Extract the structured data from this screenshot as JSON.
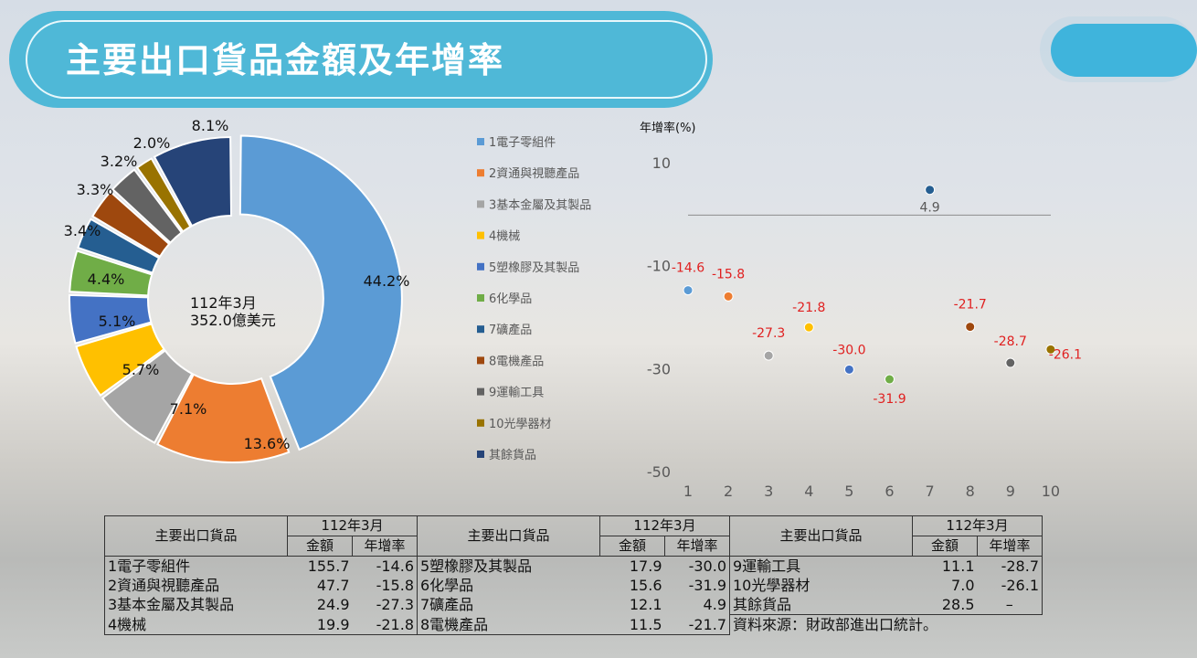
{
  "title": "主要出口貨品金額及年增率",
  "colors": {
    "title_bg": "#4fb8d7",
    "category_colors": [
      "#5b9bd5",
      "#ed7d31",
      "#a5a5a5",
      "#ffc000",
      "#4472c4",
      "#70ad47",
      "#255e91",
      "#9e480e",
      "#636363",
      "#997300",
      "#264478"
    ],
    "growth_label_negative": "#e02020",
    "growth_label_positive": "#595959"
  },
  "chart_data": [
    {
      "type": "pie",
      "variant": "donut",
      "center_label_line1": "112年3月",
      "center_label_line2": "352.0億美元",
      "categories": [
        "1電子零組件",
        "2資通與視聽產品",
        "3基本金屬及其製品",
        "4機械",
        "5塑橡膠及其製品",
        "6化學品",
        "7礦產品",
        "8電機產品",
        "9運輸工具",
        "10光學器材",
        "其餘貨品"
      ],
      "values": [
        44.2,
        13.6,
        7.1,
        5.7,
        5.1,
        4.4,
        3.4,
        3.3,
        3.2,
        2.0,
        8.1
      ],
      "labels": [
        "44.2%",
        "13.6%",
        "7.1%",
        "5.7%",
        "5.1%",
        "4.4%",
        "3.4%",
        "3.3%",
        "3.2%",
        "2.0%",
        "8.1%"
      ],
      "legend_position": "right"
    },
    {
      "type": "scatter",
      "ylabel": "年增率(%)",
      "x": [
        1,
        2,
        3,
        4,
        5,
        6,
        7,
        8,
        9,
        10
      ],
      "y": [
        -14.6,
        -15.8,
        -27.3,
        -21.8,
        -30.0,
        -31.9,
        4.9,
        -21.7,
        -28.7,
        -26.1
      ],
      "point_labels": [
        "-14.6",
        "-15.8",
        "-27.3",
        "-21.8",
        "-30.0",
        "-31.9",
        "4.9",
        "-21.7",
        "-28.7",
        "-26.1"
      ],
      "xticks": [
        "1",
        "2",
        "3",
        "4",
        "5",
        "6",
        "7",
        "8",
        "9",
        "10"
      ],
      "yticks": [
        "10",
        "-10",
        "-30",
        "-50"
      ],
      "ylim": [
        -50,
        10
      ],
      "zero_line": true,
      "grid": false
    }
  ],
  "table": {
    "col_header": "主要出口貨品",
    "period": "112年3月",
    "amount": "金額",
    "growth": "年增率",
    "rows": [
      [
        {
          "name": "1電子零組件",
          "amt": "155.7",
          "gr": "-14.6"
        },
        {
          "name": "5塑橡膠及其製品",
          "amt": "17.9",
          "gr": "-30.0"
        },
        {
          "name": "9運輸工具",
          "amt": "11.1",
          "gr": "-28.7"
        }
      ],
      [
        {
          "name": "2資通與視聽產品",
          "amt": "47.7",
          "gr": "-15.8"
        },
        {
          "name": "6化學品",
          "amt": "15.6",
          "gr": "-31.9"
        },
        {
          "name": "10光學器材",
          "amt": "7.0",
          "gr": "-26.1"
        }
      ],
      [
        {
          "name": "3基本金屬及其製品",
          "amt": "24.9",
          "gr": "-27.3"
        },
        {
          "name": "7礦產品",
          "amt": "12.1",
          "gr": "4.9"
        },
        {
          "name": "其餘貨品",
          "amt": "28.5",
          "gr": "–"
        }
      ],
      [
        {
          "name": "4機械",
          "amt": "19.9",
          "gr": "-21.8"
        },
        {
          "name": "8電機產品",
          "amt": "11.5",
          "gr": "-21.7"
        }
      ]
    ],
    "source": "資料來源：財政部進出口統計。"
  }
}
